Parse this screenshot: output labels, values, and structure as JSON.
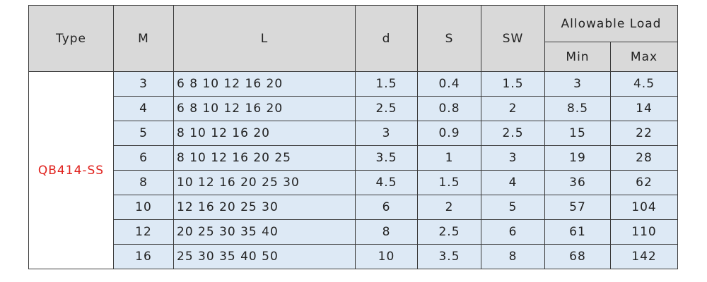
{
  "table": {
    "header": {
      "type": "Type",
      "m": "M",
      "l": "L",
      "d": "d",
      "s": "S",
      "sw": "SW",
      "allowable_load": "Allowable Load",
      "min": "Min",
      "max": "Max"
    },
    "type_value": "QB414-SS",
    "rows": [
      [
        "3",
        "6 8 10 12 16 20",
        "1.5",
        "0.4",
        "1.5",
        "3",
        "4.5"
      ],
      [
        "4",
        "6 8 10 12 16 20",
        "2.5",
        "0.8",
        "2",
        "8.5",
        "14"
      ],
      [
        "5",
        "8 10 12 16 20",
        "3",
        "0.9",
        "2.5",
        "15",
        "22"
      ],
      [
        "6",
        "8 10 12 16 20 25",
        "3.5",
        "1",
        "3",
        "19",
        "28"
      ],
      [
        "8",
        "10 12 16 20 25 30",
        "4.5",
        "1.5",
        "4",
        "36",
        "62"
      ],
      [
        "10",
        "12 16 20 25 30",
        "6",
        "2",
        "5",
        "57",
        "104"
      ],
      [
        "12",
        "20 25 30 35 40",
        "8",
        "2.5",
        "6",
        "61",
        "110"
      ],
      [
        "16",
        "25 30 35 40 50",
        "10",
        "3.5",
        "8",
        "68",
        "142"
      ]
    ]
  }
}
